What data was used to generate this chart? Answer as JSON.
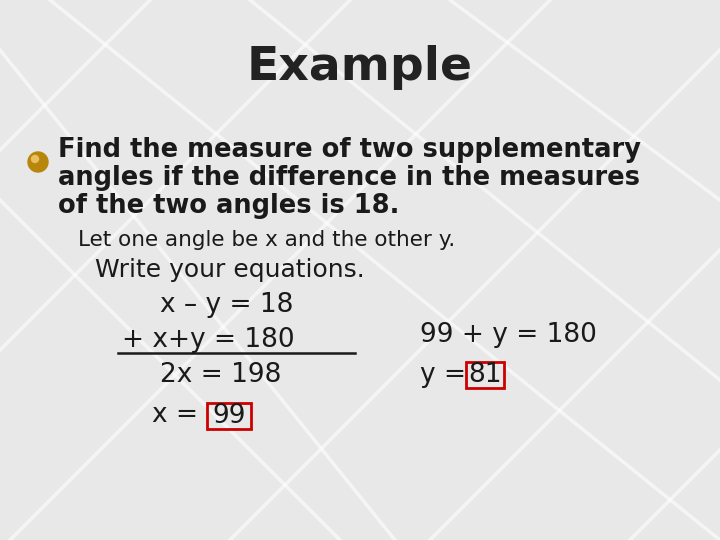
{
  "title": "Example",
  "title_fontsize": 34,
  "title_color": "#222222",
  "bg_color": "#e8e8e8",
  "bullet_text_line1": "Find the measure of two supplementary",
  "bullet_text_line2": "angles if the difference in the measures",
  "bullet_text_line3": "of the two angles is 18.",
  "bullet_color": "#b8860b",
  "bullet_fontsize": 18,
  "sub1": "Let one angle be x and the other y.",
  "sub2": "Write your equations.",
  "eq1": "x – y = 18",
  "eq2": "+ x+y = 180",
  "eq3": "2x = 198",
  "eq4": "x =",
  "eq4_box": "99",
  "eq5": "99 + y = 180",
  "eq6": "y =",
  "eq6_box": "81",
  "text_color": "#1a1a1a",
  "box_color": "#cc0000",
  "line_color": "#1a1a1a",
  "diag_lines": [
    [
      [
        150,
        0
      ],
      [
        0,
        150
      ]
    ],
    [
      [
        350,
        0
      ],
      [
        0,
        350
      ]
    ],
    [
      [
        550,
        0
      ],
      [
        0,
        550
      ]
    ],
    [
      [
        720,
        50
      ],
      [
        50,
        720
      ]
    ],
    [
      [
        720,
        250
      ],
      [
        250,
        720
      ]
    ],
    [
      [
        720,
        450
      ],
      [
        450,
        720
      ]
    ],
    [
      [
        50,
        0
      ],
      [
        720,
        540
      ]
    ],
    [
      [
        250,
        0
      ],
      [
        720,
        380
      ]
    ],
    [
      [
        450,
        0
      ],
      [
        720,
        200
      ]
    ],
    [
      [
        0,
        50
      ],
      [
        540,
        720
      ]
    ],
    [
      [
        0,
        200
      ],
      [
        340,
        540
      ]
    ]
  ]
}
